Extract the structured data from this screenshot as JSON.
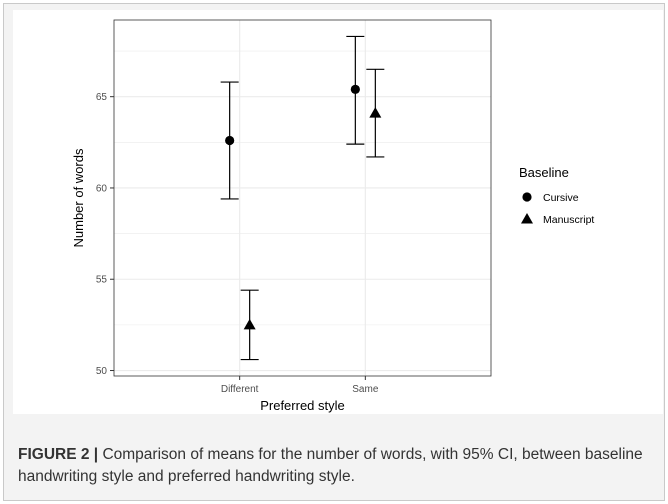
{
  "chart_data": {
    "type": "scatter",
    "subtype": "point-with-error-bars",
    "categories": [
      "Different",
      "Same"
    ],
    "xlabel": "Preferred style",
    "ylabel": "Number of words",
    "ylim": [
      49.7,
      69.2
    ],
    "yticks": [
      50,
      55,
      60,
      65
    ],
    "grid": true,
    "legend": {
      "title": "Baseline",
      "placement": "right"
    },
    "series": [
      {
        "name": "Cursive",
        "marker": "circle",
        "points": [
          {
            "x": "Different",
            "y": 62.6,
            "ci_low": 59.4,
            "ci_high": 65.8
          },
          {
            "x": "Same",
            "y": 65.4,
            "ci_low": 62.4,
            "ci_high": 68.3
          }
        ]
      },
      {
        "name": "Manuscript",
        "marker": "triangle",
        "points": [
          {
            "x": "Different",
            "y": 52.5,
            "ci_low": 50.6,
            "ci_high": 54.4
          },
          {
            "x": "Same",
            "y": 64.1,
            "ci_low": 61.7,
            "ci_high": 66.5
          }
        ]
      }
    ],
    "colors": {
      "marker": "#000000",
      "grid": "#ebebeb",
      "panel_border": "#333333"
    }
  },
  "caption": {
    "label": "FIGURE 2",
    "separator": "|",
    "text": "Comparison of means for the number of words, with 95% CI, between baseline handwriting style and preferred handwriting style."
  }
}
